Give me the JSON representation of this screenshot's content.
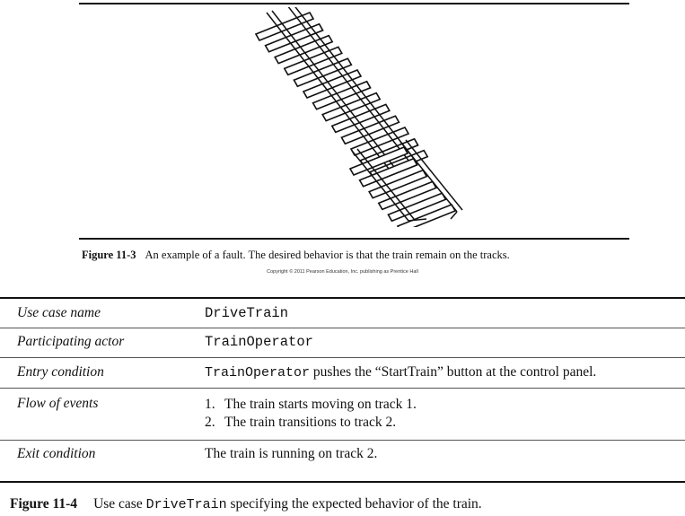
{
  "figure3": {
    "label": "Figure 11-3",
    "caption": "An example of a fault. The desired behavior is that the train remain on the tracks.",
    "copyright": "Copyright © 2011 Pearson Education, Inc. publishing as Prentice Hall"
  },
  "usecase": {
    "rows": [
      {
        "label": "Use case name",
        "value": "DriveTrain"
      },
      {
        "label": "Participating actor",
        "value": "TrainOperator"
      },
      {
        "label": "Entry condition",
        "value_code": "TrainOperator",
        "value_text": " pushes the “StartTrain” button at the control panel."
      },
      {
        "label": "Flow of events",
        "steps": [
          {
            "num": "1.",
            "text": "The train starts moving on track 1."
          },
          {
            "num": "2.",
            "text": "The train transitions to track 2."
          }
        ]
      },
      {
        "label": "Exit condition",
        "value": "The train is running on track 2."
      }
    ]
  },
  "figure4": {
    "label": "Figure 11-4",
    "caption_pre": "Use case ",
    "caption_code": "DriveTrain",
    "caption_post": " specifying the expected behavior of the train."
  }
}
